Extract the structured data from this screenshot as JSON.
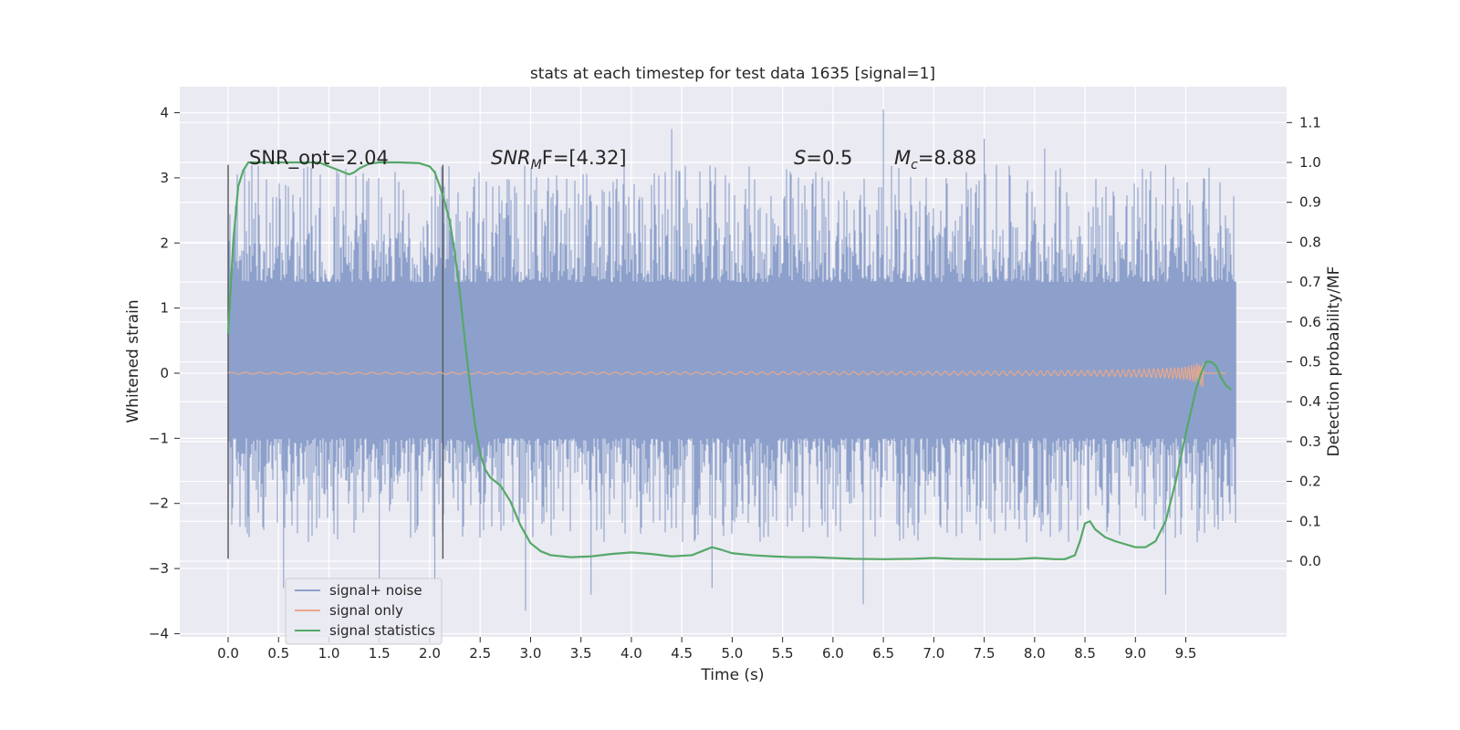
{
  "chart_data": {
    "type": "line",
    "title": "stats at each timestep for test data 1635 [signal=1]",
    "xlabel": "Time (s)",
    "ylabel_left": "Whitened strain",
    "ylabel_right": "Detection probability/MF",
    "xlim": [
      -0.48,
      10.5
    ],
    "ylim_left": [
      -4.05,
      4.4
    ],
    "ylim_right": [
      -0.19,
      1.19
    ],
    "xticks": [
      "0.0",
      "0.5",
      "1.0",
      "1.5",
      "2.0",
      "2.5",
      "3.0",
      "3.5",
      "4.0",
      "4.5",
      "5.0",
      "5.5",
      "6.0",
      "6.5",
      "7.0",
      "7.5",
      "8.0",
      "8.5",
      "9.0",
      "9.5"
    ],
    "xtick_values": [
      0,
      0.5,
      1,
      1.5,
      2,
      2.5,
      3,
      3.5,
      4,
      4.5,
      5,
      5.5,
      6,
      6.5,
      7,
      7.5,
      8,
      8.5,
      9,
      9.5
    ],
    "yticks_left": [
      "4",
      "3",
      "2",
      "1",
      "0",
      "−1",
      "−2",
      "−3",
      "−4"
    ],
    "ytick_values_left": [
      4,
      3,
      2,
      1,
      0,
      -1,
      -2,
      -3,
      -4
    ],
    "yticks_right": [
      "1.1",
      "1.0",
      "0.9",
      "0.8",
      "0.7",
      "0.6",
      "0.5",
      "0.4",
      "0.3",
      "0.2",
      "0.1",
      "0.0"
    ],
    "ytick_values_right": [
      1.1,
      1.0,
      0.9,
      0.8,
      0.7,
      0.6,
      0.5,
      0.4,
      0.3,
      0.2,
      0.1,
      0.0
    ],
    "grid": true,
    "legend_position": "bottom-left",
    "annotations": {
      "snr_opt": "SNR_opt=2.04",
      "snr_mf_base": "SNR",
      "snr_mf_sub": "M",
      "snr_mf_tail": "F=[4.32]",
      "s_var": "S",
      "s_val": "=0.5",
      "mc_var": "M",
      "mc_sub": "c",
      "mc_val": "=8.88"
    },
    "vertical_markers": [
      {
        "x": 0.0,
        "y_range": [
          -2.85,
          3.2
        ]
      },
      {
        "x": 2.13,
        "y_range": [
          -2.85,
          3.2
        ]
      }
    ],
    "series": [
      {
        "name": "signal+ noise",
        "axis": "left",
        "color": "#8da0cb",
        "x_range": [
          0,
          10
        ],
        "band_core": [
          -1.0,
          1.4
        ],
        "band_spread": [
          -2.6,
          3.2
        ],
        "extremes": [
          [
            0.55,
            -3.3
          ],
          [
            1.5,
            -3.15
          ],
          [
            2.05,
            -3.2
          ],
          [
            2.95,
            -3.65
          ],
          [
            3.6,
            -3.4
          ],
          [
            4.4,
            3.75
          ],
          [
            4.8,
            -3.3
          ],
          [
            6.3,
            -3.55
          ],
          [
            6.5,
            4.05
          ],
          [
            7.5,
            3.6
          ],
          [
            8.1,
            3.45
          ],
          [
            9.3,
            -3.4
          ],
          [
            9.3,
            3.2
          ]
        ]
      },
      {
        "name": "signal only",
        "axis": "left",
        "color": "#e8a88c",
        "chirp": {
          "x_start": 0,
          "x_end": 9.68,
          "amp_end": 0.25,
          "tail": [
            9.68,
            9.9
          ]
        }
      },
      {
        "name": "signal statistics",
        "axis": "right",
        "color": "#55a868",
        "x": [
          0.0,
          0.05,
          0.1,
          0.15,
          0.2,
          0.3,
          0.5,
          0.7,
          0.9,
          1.0,
          1.1,
          1.2,
          1.25,
          1.3,
          1.4,
          1.5,
          1.7,
          1.9,
          2.0,
          2.05,
          2.1,
          2.15,
          2.2,
          2.25,
          2.3,
          2.35,
          2.4,
          2.45,
          2.5,
          2.55,
          2.6,
          2.7,
          2.8,
          2.9,
          3.0,
          3.1,
          3.2,
          3.4,
          3.6,
          3.8,
          4.0,
          4.2,
          4.4,
          4.6,
          4.7,
          4.8,
          4.9,
          5.0,
          5.2,
          5.4,
          5.6,
          5.8,
          6.0,
          6.2,
          6.5,
          6.8,
          7.0,
          7.2,
          7.5,
          7.8,
          8.0,
          8.2,
          8.3,
          8.4,
          8.45,
          8.5,
          8.55,
          8.6,
          8.7,
          8.8,
          9.0,
          9.1,
          9.2,
          9.3,
          9.4,
          9.5,
          9.6,
          9.65,
          9.7,
          9.75,
          9.8,
          9.85,
          9.9,
          9.95
        ],
        "values": [
          0.57,
          0.8,
          0.94,
          0.98,
          1.0,
          1.0,
          1.0,
          1.0,
          1.0,
          0.99,
          0.98,
          0.97,
          0.975,
          0.985,
          0.997,
          1.0,
          1.0,
          0.998,
          0.99,
          0.975,
          0.94,
          0.9,
          0.85,
          0.77,
          0.67,
          0.55,
          0.44,
          0.34,
          0.27,
          0.23,
          0.21,
          0.19,
          0.15,
          0.09,
          0.045,
          0.025,
          0.015,
          0.01,
          0.012,
          0.018,
          0.022,
          0.018,
          0.012,
          0.015,
          0.025,
          0.035,
          0.028,
          0.02,
          0.015,
          0.012,
          0.01,
          0.01,
          0.008,
          0.006,
          0.005,
          0.006,
          0.008,
          0.006,
          0.005,
          0.005,
          0.008,
          0.005,
          0.005,
          0.015,
          0.05,
          0.095,
          0.1,
          0.08,
          0.06,
          0.05,
          0.035,
          0.035,
          0.05,
          0.1,
          0.2,
          0.32,
          0.43,
          0.47,
          0.5,
          0.5,
          0.49,
          0.46,
          0.44,
          0.43
        ]
      }
    ]
  }
}
